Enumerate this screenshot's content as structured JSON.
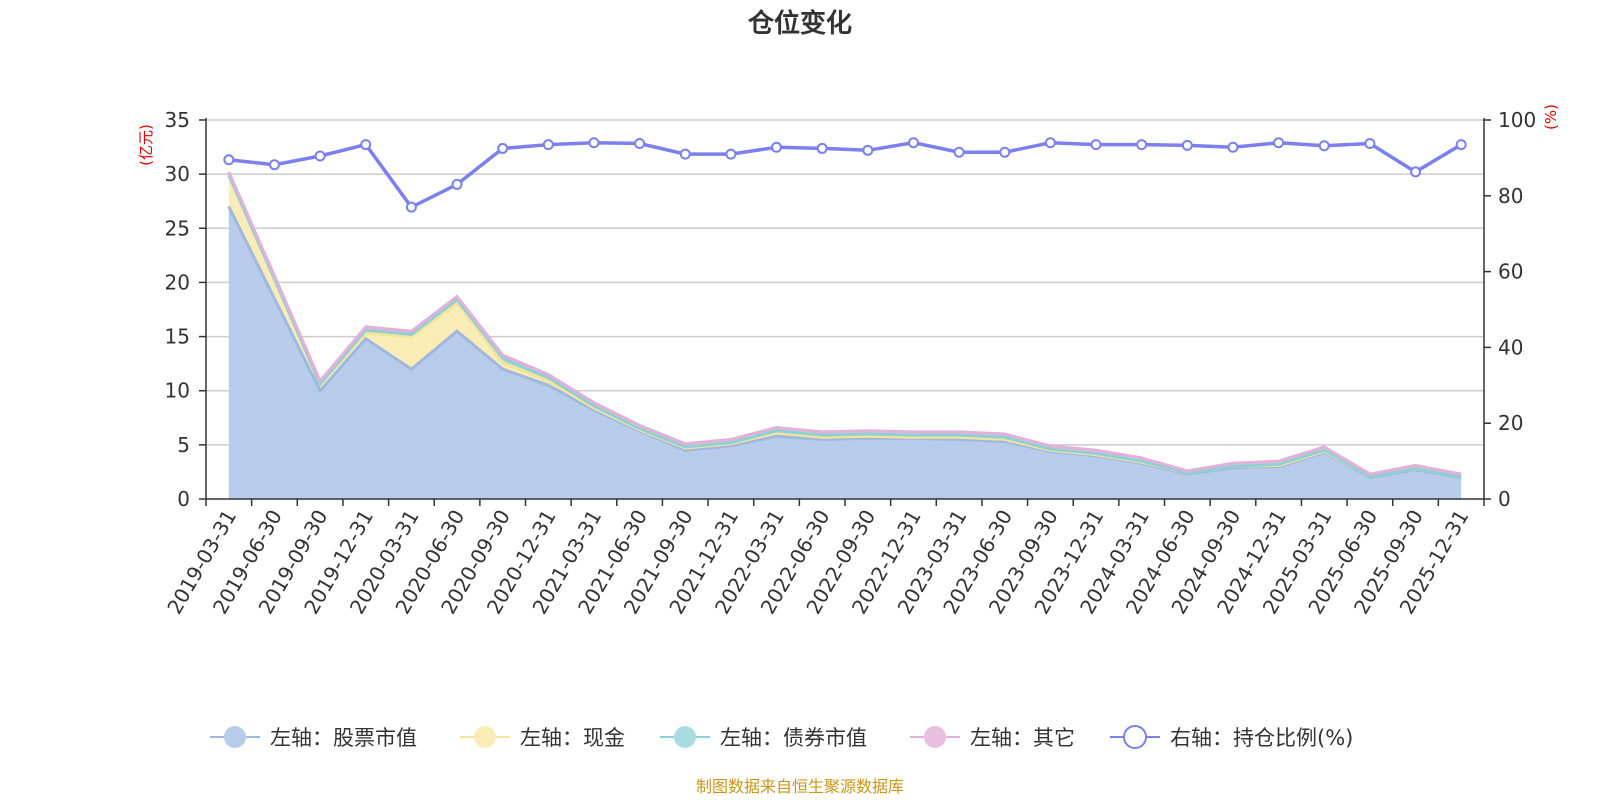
{
  "chart_data": {
    "type": "area",
    "title": "仓位变化",
    "left_axis_unit": "(亿元)",
    "right_axis_unit": "(%)",
    "ylim_left": [
      0,
      35
    ],
    "yticks_left": [
      0,
      5,
      10,
      15,
      20,
      25,
      30,
      35
    ],
    "ylim_right": [
      0,
      100
    ],
    "yticks_right": [
      0,
      20,
      40,
      60,
      80,
      100
    ],
    "categories": [
      "2019-03-31",
      "2019-06-30",
      "2019-09-30",
      "2019-12-31",
      "2020-03-31",
      "2020-06-30",
      "2020-09-30",
      "2020-12-31",
      "2021-03-31",
      "2021-06-30",
      "2021-09-30",
      "2021-12-31",
      "2022-03-31",
      "2022-06-30",
      "2022-09-30",
      "2022-12-31",
      "2023-03-31",
      "2023-06-30",
      "2023-09-30",
      "2023-12-31",
      "2024-03-31",
      "2024-06-30",
      "2024-09-30",
      "2024-12-31",
      "2025-03-31",
      "2025-06-30",
      "2025-09-30",
      "2025-12-31"
    ],
    "series": [
      {
        "name": "左轴：股票市值",
        "axis": "left",
        "color": "#9eb8e0",
        "fill": "#b7cbea",
        "values": [
          27.0,
          18.5,
          10.0,
          14.8,
          12.0,
          15.5,
          12.0,
          10.5,
          8.2,
          6.3,
          4.5,
          4.9,
          5.8,
          5.5,
          5.6,
          5.6,
          5.5,
          5.3,
          4.4,
          4.0,
          3.3,
          2.3,
          2.9,
          3.0,
          4.3,
          2.0,
          2.7,
          2.0
        ]
      },
      {
        "name": "左轴：现金",
        "axis": "left",
        "color": "#f5e39a",
        "fill": "#faecb5",
        "values": [
          2.9,
          1.8,
          0.6,
          0.5,
          3.0,
          2.6,
          0.6,
          0.4,
          0.2,
          0.1,
          0.2,
          0.2,
          0.3,
          0.2,
          0.2,
          0.1,
          0.2,
          0.2,
          0.1,
          0.1,
          0.1,
          0.1,
          0.1,
          0.1,
          0.1,
          0.1,
          0.1,
          0.1
        ]
      },
      {
        "name": "左轴：债券市值",
        "axis": "left",
        "color": "#8fd0d4",
        "fill": "#a8dcdf",
        "values": [
          0.0,
          0.0,
          0.0,
          0.3,
          0.2,
          0.3,
          0.4,
          0.3,
          0.2,
          0.1,
          0.1,
          0.1,
          0.2,
          0.2,
          0.2,
          0.2,
          0.2,
          0.2,
          0.1,
          0.1,
          0.1,
          0.0,
          0.0,
          0.1,
          0.1,
          0.0,
          0.0,
          0.0
        ]
      },
      {
        "name": "左轴：其它",
        "axis": "left",
        "color": "#e3b0da",
        "fill": "#e8bfe0",
        "values": [
          0.3,
          0.3,
          0.3,
          0.3,
          0.3,
          0.3,
          0.3,
          0.3,
          0.3,
          0.3,
          0.3,
          0.3,
          0.3,
          0.3,
          0.3,
          0.3,
          0.3,
          0.3,
          0.3,
          0.3,
          0.3,
          0.2,
          0.3,
          0.3,
          0.3,
          0.2,
          0.3,
          0.2
        ]
      },
      {
        "name": "右轴：持仓比例(%)",
        "axis": "right",
        "color": "#7b7ff0",
        "values": [
          89.5,
          88.2,
          90.5,
          93.5,
          77.0,
          83.0,
          92.5,
          93.5,
          94.0,
          93.8,
          91.0,
          91.0,
          92.8,
          92.5,
          92.0,
          94.0,
          91.5,
          91.5,
          94.0,
          93.5,
          93.5,
          93.3,
          92.8,
          94.0,
          93.2,
          93.8,
          86.3,
          93.5
        ]
      }
    ],
    "grid": true,
    "legend_position": "bottom"
  },
  "source_note": "制图数据来自恒生聚源数据库"
}
